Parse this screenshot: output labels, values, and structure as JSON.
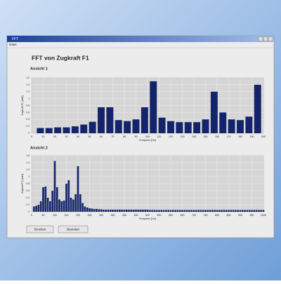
{
  "window": {
    "title": "FFT",
    "menu": [
      "Datei"
    ],
    "heading": "FFT von Zugkraft F1",
    "buttons": [
      "Drucken",
      "Beenden"
    ]
  },
  "chart_data": [
    {
      "type": "bar",
      "title": "Ansicht 1",
      "xlabel": "Frequenz [Hz]",
      "ylabel": "Zugkraft F1 [daN]",
      "color": "#14246a",
      "grid": true,
      "x": [
        7.5,
        15,
        22.5,
        30,
        37.5,
        45,
        52.5,
        60,
        67.5,
        75,
        82.5,
        90,
        97.5,
        105,
        112.5,
        120,
        127.5,
        135,
        142.5,
        150,
        157.5,
        165,
        172.5,
        180,
        187.5,
        195
      ],
      "values": [
        0.15,
        0.15,
        0.17,
        0.17,
        0.2,
        0.25,
        0.33,
        0.75,
        0.75,
        0.38,
        0.35,
        0.4,
        0.75,
        1.5,
        0.45,
        0.35,
        0.32,
        0.32,
        0.32,
        0.4,
        1.2,
        0.6,
        0.4,
        0.38,
        0.48,
        1.4
      ],
      "xlim": [
        0,
        200
      ],
      "xticks": [
        0,
        10,
        20,
        30,
        40,
        50,
        60,
        70,
        80,
        90,
        100,
        110,
        120,
        130,
        140,
        150,
        160,
        170,
        180,
        190,
        200
      ],
      "ylim": [
        0,
        1.6
      ],
      "yticks": [
        0,
        0.2,
        0.4,
        0.6,
        0.8,
        1,
        1.2,
        1.4,
        1.6
      ]
    },
    {
      "type": "bar",
      "title": "Ansicht 2",
      "xlabel": "Frequenz [Hz]",
      "ylabel": "Zugkraft F1 [daN]",
      "color": "#14246a",
      "grid": true,
      "x": [
        10,
        20,
        30,
        40,
        50,
        60,
        70,
        80,
        90,
        100,
        110,
        120,
        130,
        140,
        150,
        160,
        170,
        180,
        190,
        200,
        210,
        220,
        230,
        240,
        250,
        260,
        270,
        280,
        290,
        300,
        310,
        320,
        330,
        340,
        350,
        360,
        370,
        380,
        390,
        400,
        410,
        420,
        430,
        440,
        450,
        460,
        470,
        480,
        490,
        500,
        510,
        520,
        530,
        540,
        550,
        560,
        570,
        580,
        590,
        600,
        610,
        620,
        630,
        640,
        650,
        660,
        670,
        680,
        690,
        700,
        710,
        720,
        730,
        740,
        750,
        760,
        770,
        780,
        790,
        800,
        810,
        820,
        830,
        840,
        850,
        860,
        870,
        880,
        890,
        900,
        910,
        920,
        930,
        940,
        950,
        960,
        970,
        980,
        990,
        1000
      ],
      "values": [
        0.15,
        0.17,
        0.2,
        0.3,
        0.7,
        0.72,
        0.4,
        0.3,
        0.6,
        1.45,
        0.7,
        0.35,
        0.3,
        0.32,
        0.8,
        0.9,
        0.4,
        0.35,
        0.5,
        1.3,
        0.5,
        0.25,
        0.15,
        0.12,
        0.1,
        0.09,
        0.08,
        0.08,
        0.07,
        0.07,
        0.06,
        0.06,
        0.06,
        0.06,
        0.06,
        0.06,
        0.06,
        0.06,
        0.06,
        0.06,
        0.06,
        0.06,
        0.06,
        0.06,
        0.06,
        0.06,
        0.06,
        0.06,
        0.06,
        0.06,
        0.05,
        0.05,
        0.05,
        0.05,
        0.05,
        0.05,
        0.05,
        0.05,
        0.05,
        0.05,
        0.05,
        0.05,
        0.05,
        0.05,
        0.05,
        0.05,
        0.05,
        0.05,
        0.05,
        0.05,
        0.05,
        0.05,
        0.05,
        0.05,
        0.05,
        0.05,
        0.05,
        0.05,
        0.05,
        0.05,
        0.05,
        0.05,
        0.05,
        0.05,
        0.05,
        0.05,
        0.05,
        0.05,
        0.05,
        0.05,
        0.05,
        0.05,
        0.05,
        0.05,
        0.05,
        0.05,
        0.05,
        0.05,
        0.05,
        0.05
      ],
      "xlim": [
        0,
        1000
      ],
      "xticks": [
        0,
        50,
        100,
        150,
        200,
        250,
        300,
        350,
        400,
        450,
        500,
        550,
        600,
        650,
        700,
        750,
        800,
        850,
        900,
        950,
        1000
      ],
      "ylim": [
        0,
        1.6
      ],
      "yticks": [
        0,
        0.2,
        0.4,
        0.6,
        0.8,
        1,
        1.2,
        1.4,
        1.6
      ]
    }
  ]
}
